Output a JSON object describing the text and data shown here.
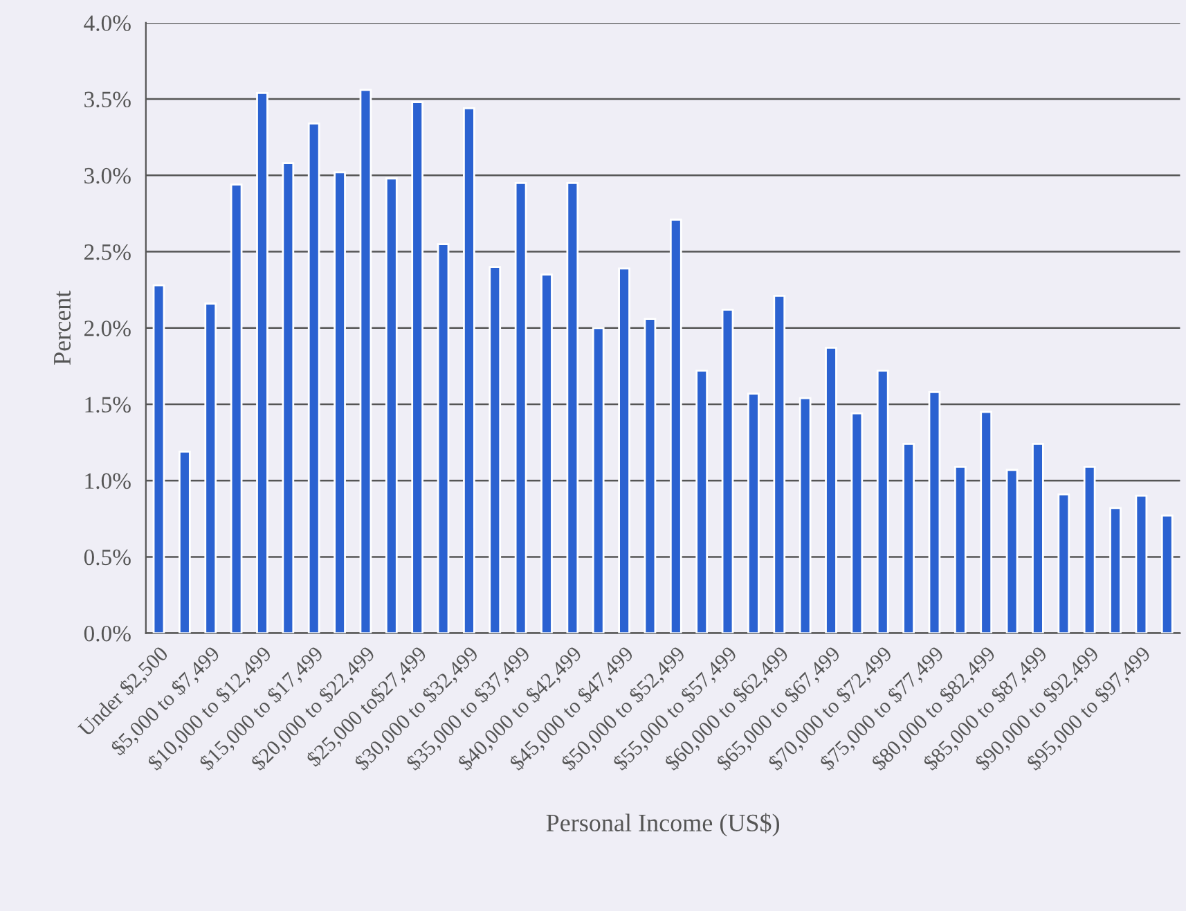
{
  "chart_data": {
    "type": "bar",
    "xlabel": "Personal Income (US$)",
    "ylabel": "Percent",
    "categories": [
      "Under $2,500",
      null,
      "$5,000 to $7,499",
      null,
      "$10,000 to $12,499",
      null,
      "$15,000 to $17,499",
      null,
      "$20,000 to $22,499",
      null,
      "$25,000 to$27,499",
      null,
      "$30,000 to $32,499",
      null,
      "$35,000 to $37,499",
      null,
      "$40,000 to $42,499",
      null,
      "$45,000 to $47,499",
      null,
      "$50,000 to $52,499",
      null,
      "$55,000 to $57,499",
      null,
      "$60,000 to $62,499",
      null,
      "$65,000 to $67,499",
      null,
      "$70,000 to $72,499",
      null,
      "$75,000 to $77,499",
      null,
      "$80,000 to $82,499",
      null,
      "$85,000 to $87,499",
      null,
      "$90,000 to $92,499",
      null,
      "$95,000 to $97,499",
      null
    ],
    "values": [
      2.28,
      1.19,
      2.16,
      2.94,
      3.54,
      3.08,
      3.34,
      3.02,
      3.56,
      2.98,
      3.48,
      2.55,
      3.44,
      2.4,
      2.95,
      2.35,
      2.95,
      2.0,
      2.39,
      2.06,
      2.71,
      1.72,
      2.12,
      1.57,
      2.21,
      1.54,
      1.87,
      1.44,
      1.72,
      1.24,
      1.58,
      1.09,
      1.45,
      1.07,
      1.24,
      0.91,
      1.09,
      0.82,
      0.9,
      0.77
    ],
    "color": "#2b62d1",
    "ylim": [
      0,
      4.0
    ],
    "yticks": [
      {
        "value": 0,
        "label": "0.0%"
      },
      {
        "value": 0.5,
        "label": "0.5%"
      },
      {
        "value": 1.0,
        "label": "1.0%"
      },
      {
        "value": 1.5,
        "label": "1.5%"
      },
      {
        "value": 2.0,
        "label": "2.0%"
      },
      {
        "value": 2.5,
        "label": "2.5%"
      },
      {
        "value": 3.0,
        "label": "3.0%"
      },
      {
        "value": 3.5,
        "label": "3.5%"
      },
      {
        "value": 4.0,
        "label": "4.0%"
      }
    ],
    "grid": "y",
    "legend": false
  }
}
